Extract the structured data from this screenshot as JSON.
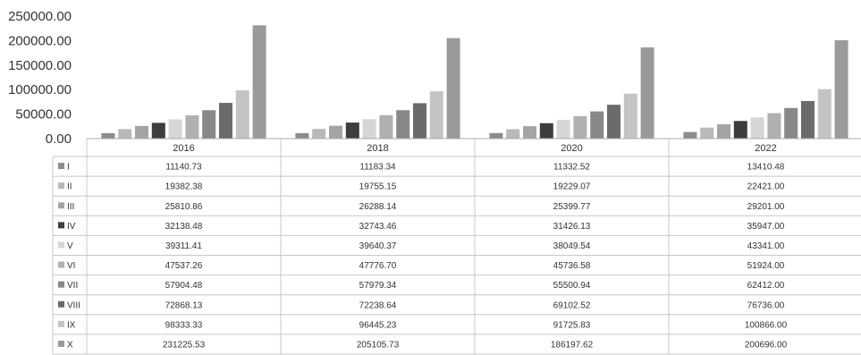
{
  "chart_data": {
    "type": "bar",
    "categories": [
      "2016",
      "2018",
      "2020",
      "2022"
    ],
    "series": [
      {
        "name": "I",
        "values": [
          "11140.73",
          "11183.34",
          "11332.52",
          "13410.48"
        ],
        "color": "#8c8c8c"
      },
      {
        "name": "II",
        "values": [
          "19382.38",
          "19755.15",
          "19229.07",
          "22421.00"
        ],
        "color": "#b9b9b9"
      },
      {
        "name": "III",
        "values": [
          "25810.86",
          "26288.14",
          "25399.77",
          "29201.00"
        ],
        "color": "#a4a4a4"
      },
      {
        "name": "IV",
        "values": [
          "32138.48",
          "32743.46",
          "31426.13",
          "35947.00"
        ],
        "color": "#3d3d3d"
      },
      {
        "name": "V",
        "values": [
          "39311.41",
          "39640.37",
          "38049.54",
          "43341.00"
        ],
        "color": "#d6d6d6"
      },
      {
        "name": "VI",
        "values": [
          "47537.26",
          "47776.70",
          "45736.58",
          "51924.00"
        ],
        "color": "#b0b0b0"
      },
      {
        "name": "VII",
        "values": [
          "57904.48",
          "57979.34",
          "55500.94",
          "62412.00"
        ],
        "color": "#888888"
      },
      {
        "name": "VIII",
        "values": [
          "72868.13",
          "72238.64",
          "69102.52",
          "76736.00"
        ],
        "color": "#6b6b6b"
      },
      {
        "name": "IX",
        "values": [
          "98333.33",
          "96445.23",
          "91725.83",
          "100866.00"
        ],
        "color": "#c4c4c4"
      },
      {
        "name": "X",
        "values": [
          "231225.53",
          "205105.73",
          "186197.62",
          "200696.00"
        ],
        "color": "#9a9a9a"
      }
    ],
    "yticks": [
      "250000.00",
      "200000.00",
      "150000.00",
      "100000.00",
      "50000.00",
      "0.00"
    ],
    "ylim": [
      0,
      250000
    ],
    "grid": false,
    "legend": "data table below chart"
  }
}
